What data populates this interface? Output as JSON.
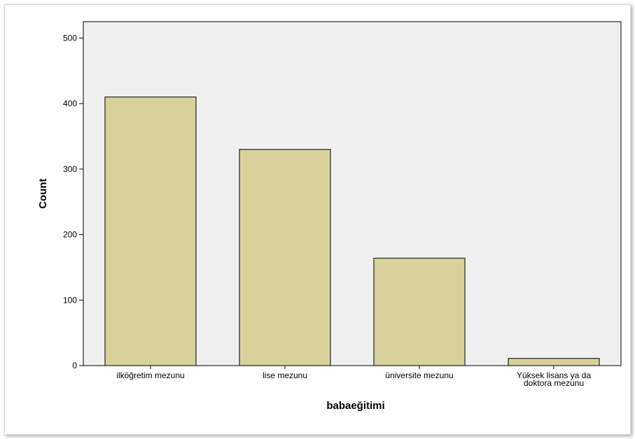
{
  "chart_data": {
    "type": "bar",
    "categories": [
      "ilköğretim mezunu",
      "lise mezunu",
      "üniversite mezunu",
      "Yüksek lisans ya da doktora mezunu"
    ],
    "category_lines": [
      [
        "ilköğretim mezunu"
      ],
      [
        "lise mezunu"
      ],
      [
        "üniversite mezunu"
      ],
      [
        "Yüksek lisans ya da",
        "doktora mezunu"
      ]
    ],
    "values": [
      410,
      330,
      164,
      11
    ],
    "xlabel": "babaeğitimi",
    "ylabel": "Count",
    "ylim": [
      0,
      525
    ],
    "yticks": [
      0,
      100,
      200,
      300,
      400,
      500
    ],
    "grid": false,
    "colors": {
      "bar_fill": "#d7d29b",
      "bar_stroke": "#222222",
      "plot_background": "#f0f0f0",
      "axis": "#000000"
    }
  }
}
